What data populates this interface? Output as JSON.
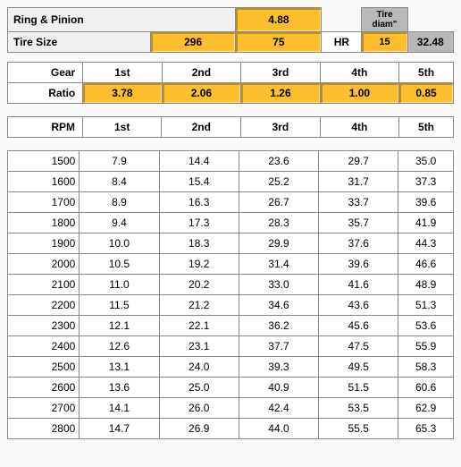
{
  "ring_pinion": {
    "label": "Ring & Pinion",
    "value": "4.88"
  },
  "tire_size": {
    "label": "Tire Size",
    "width": "296",
    "aspect": "75",
    "rating": "HR",
    "wheel": "15"
  },
  "tire_diam": {
    "label": "Tire diam\"",
    "value": "32.48"
  },
  "gear_row": {
    "gear_label": "Gear",
    "ratio_label": "Ratio",
    "headers": [
      "1st",
      "2nd",
      "3rd",
      "4th",
      "5th"
    ],
    "ratios": [
      "3.78",
      "2.06",
      "1.26",
      "1.00",
      "0.85"
    ]
  },
  "rpm_label": "RPM",
  "speed_table": {
    "rpm": [
      1500,
      1600,
      1700,
      1800,
      1900,
      2000,
      2100,
      2200,
      2300,
      2400,
      2500,
      2600,
      2700,
      2800
    ],
    "rows": [
      [
        "7.9",
        "14.4",
        "23.6",
        "29.7",
        "35.0"
      ],
      [
        "8.4",
        "15.4",
        "25.2",
        "31.7",
        "37.3"
      ],
      [
        "8.9",
        "16.3",
        "26.7",
        "33.7",
        "39.6"
      ],
      [
        "9.4",
        "17.3",
        "28.3",
        "35.7",
        "41.9"
      ],
      [
        "10.0",
        "18.3",
        "29.9",
        "37.6",
        "44.3"
      ],
      [
        "10.5",
        "19.2",
        "31.4",
        "39.6",
        "46.6"
      ],
      [
        "11.0",
        "20.2",
        "33.0",
        "41.6",
        "48.9"
      ],
      [
        "11.5",
        "21.2",
        "34.6",
        "43.6",
        "51.3"
      ],
      [
        "12.1",
        "22.1",
        "36.2",
        "45.6",
        "53.6"
      ],
      [
        "12.6",
        "23.1",
        "37.7",
        "47.5",
        "55.9"
      ],
      [
        "13.1",
        "24.0",
        "39.3",
        "49.5",
        "58.3"
      ],
      [
        "13.6",
        "25.0",
        "40.9",
        "51.5",
        "60.6"
      ],
      [
        "14.1",
        "26.0",
        "42.4",
        "53.5",
        "62.9"
      ],
      [
        "14.7",
        "26.9",
        "44.0",
        "55.5",
        "65.3"
      ]
    ]
  },
  "colors": {
    "yellow": "#fdbf2d",
    "grey": "#b8b8b8",
    "border": "#888888"
  }
}
